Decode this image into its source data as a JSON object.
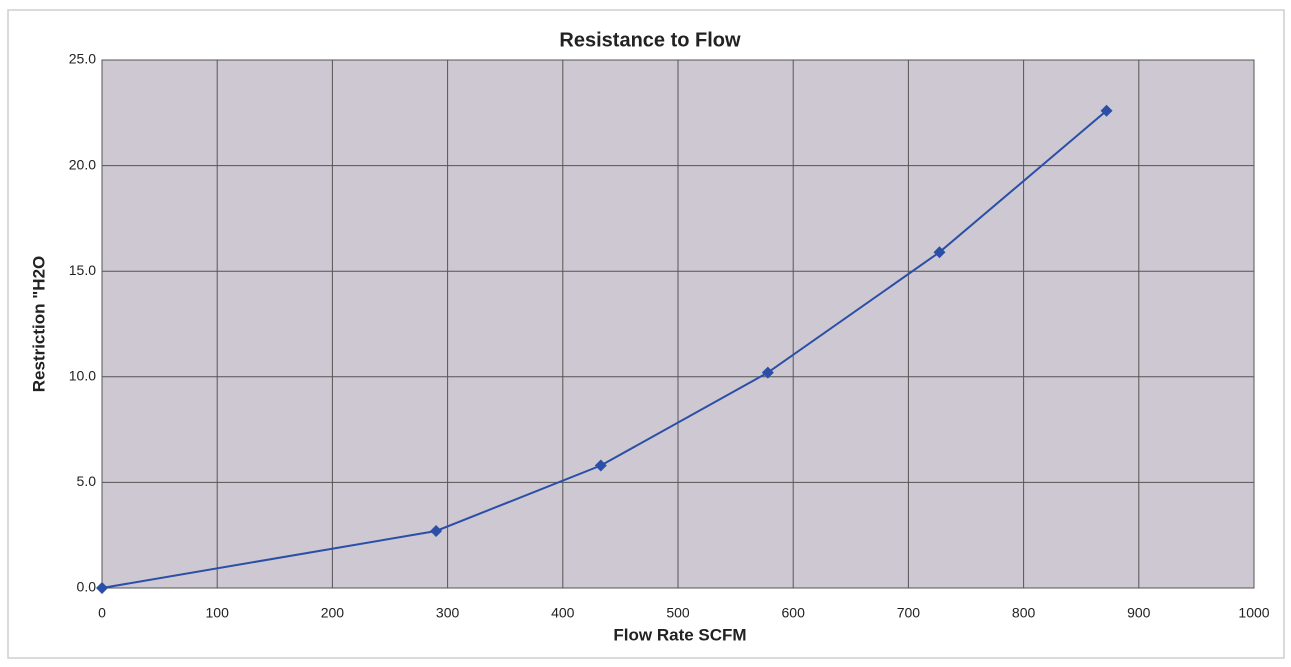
{
  "chart_data": {
    "type": "line",
    "title": "Resistance to Flow",
    "x_label": "Flow Rate SCFM",
    "y_label": "Restriction \"H2O",
    "x": [
      0,
      290,
      433,
      578,
      727,
      872
    ],
    "values": [
      0,
      2.7,
      5.8,
      10.2,
      15.9,
      22.6
    ],
    "color": "#2b4fa6",
    "xlim": [
      0,
      1000
    ],
    "xticks": [
      0,
      100,
      200,
      300,
      400,
      500,
      600,
      700,
      800,
      900,
      1000
    ],
    "ylim": [
      0,
      25
    ],
    "yticks": [
      {
        "value": 0,
        "label": "0.0"
      },
      {
        "value": 5,
        "label": "5.0"
      },
      {
        "value": 10,
        "label": "10.0"
      },
      {
        "value": 15,
        "label": "15.0"
      },
      {
        "value": 20,
        "label": "20.0"
      },
      {
        "value": 25,
        "label": "25.0"
      }
    ],
    "grid": true
  }
}
